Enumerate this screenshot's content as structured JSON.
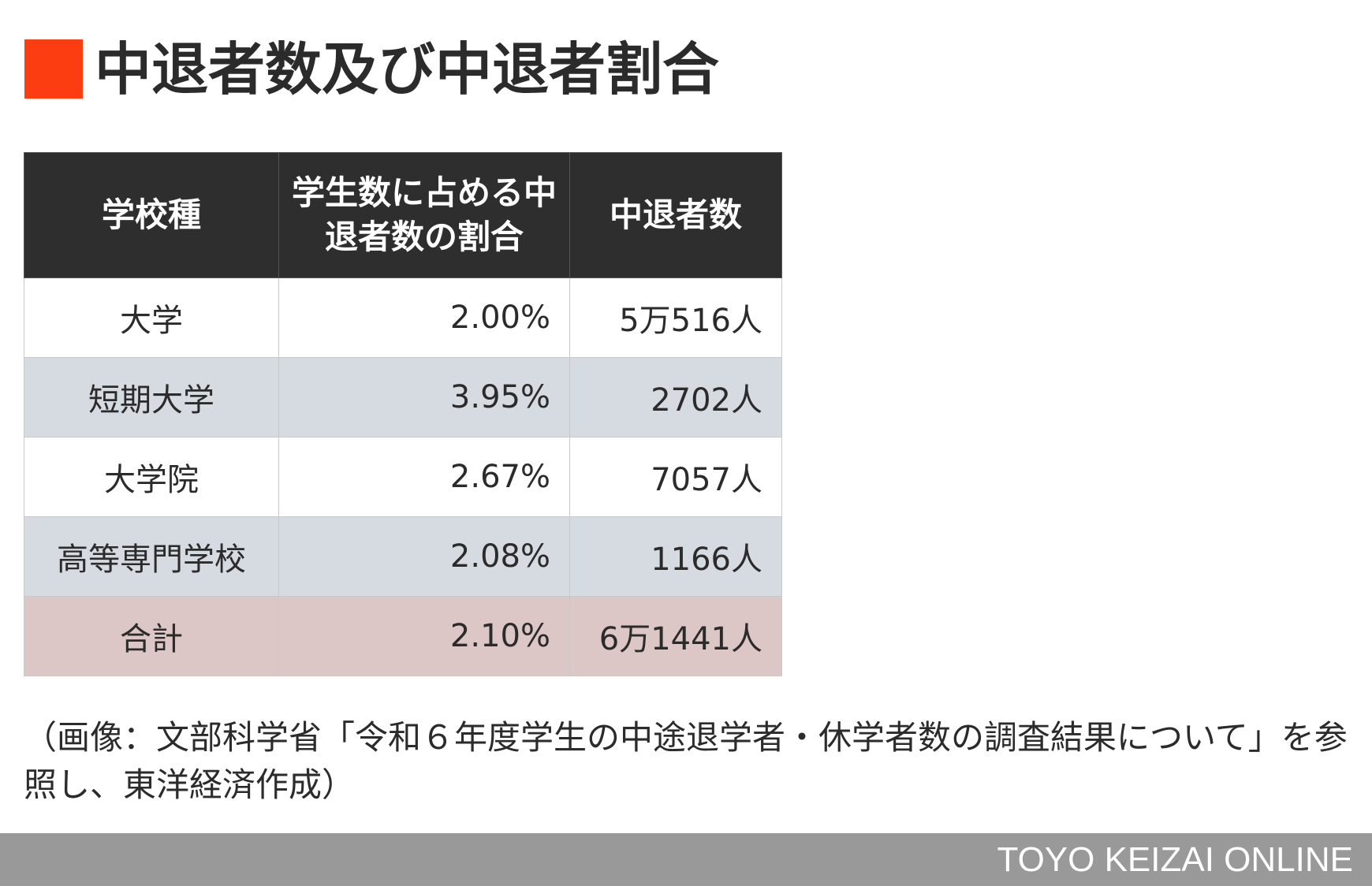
{
  "header": {
    "title": "中退者数及び中退者割合"
  },
  "table": {
    "columns": [
      "学校種",
      "学生数に占める中退者数の割合",
      "中退者数"
    ],
    "rows": [
      [
        "大学",
        "2.00%",
        "5万516人"
      ],
      [
        "短期大学",
        "3.95%",
        "2702人"
      ],
      [
        "大学院",
        "2.67%",
        "7057人"
      ],
      [
        "高等専門学校",
        "2.08%",
        "1166人"
      ],
      [
        "合計",
        "2.10%",
        "6万1441人"
      ]
    ]
  },
  "note": "（画像：文部科学省「令和６年度学生の中途退学者・休学者数の調査結果について」を参照し、東洋経済作成）",
  "footer": {
    "brand": "TOYO KEIZAI ONLINE"
  }
}
